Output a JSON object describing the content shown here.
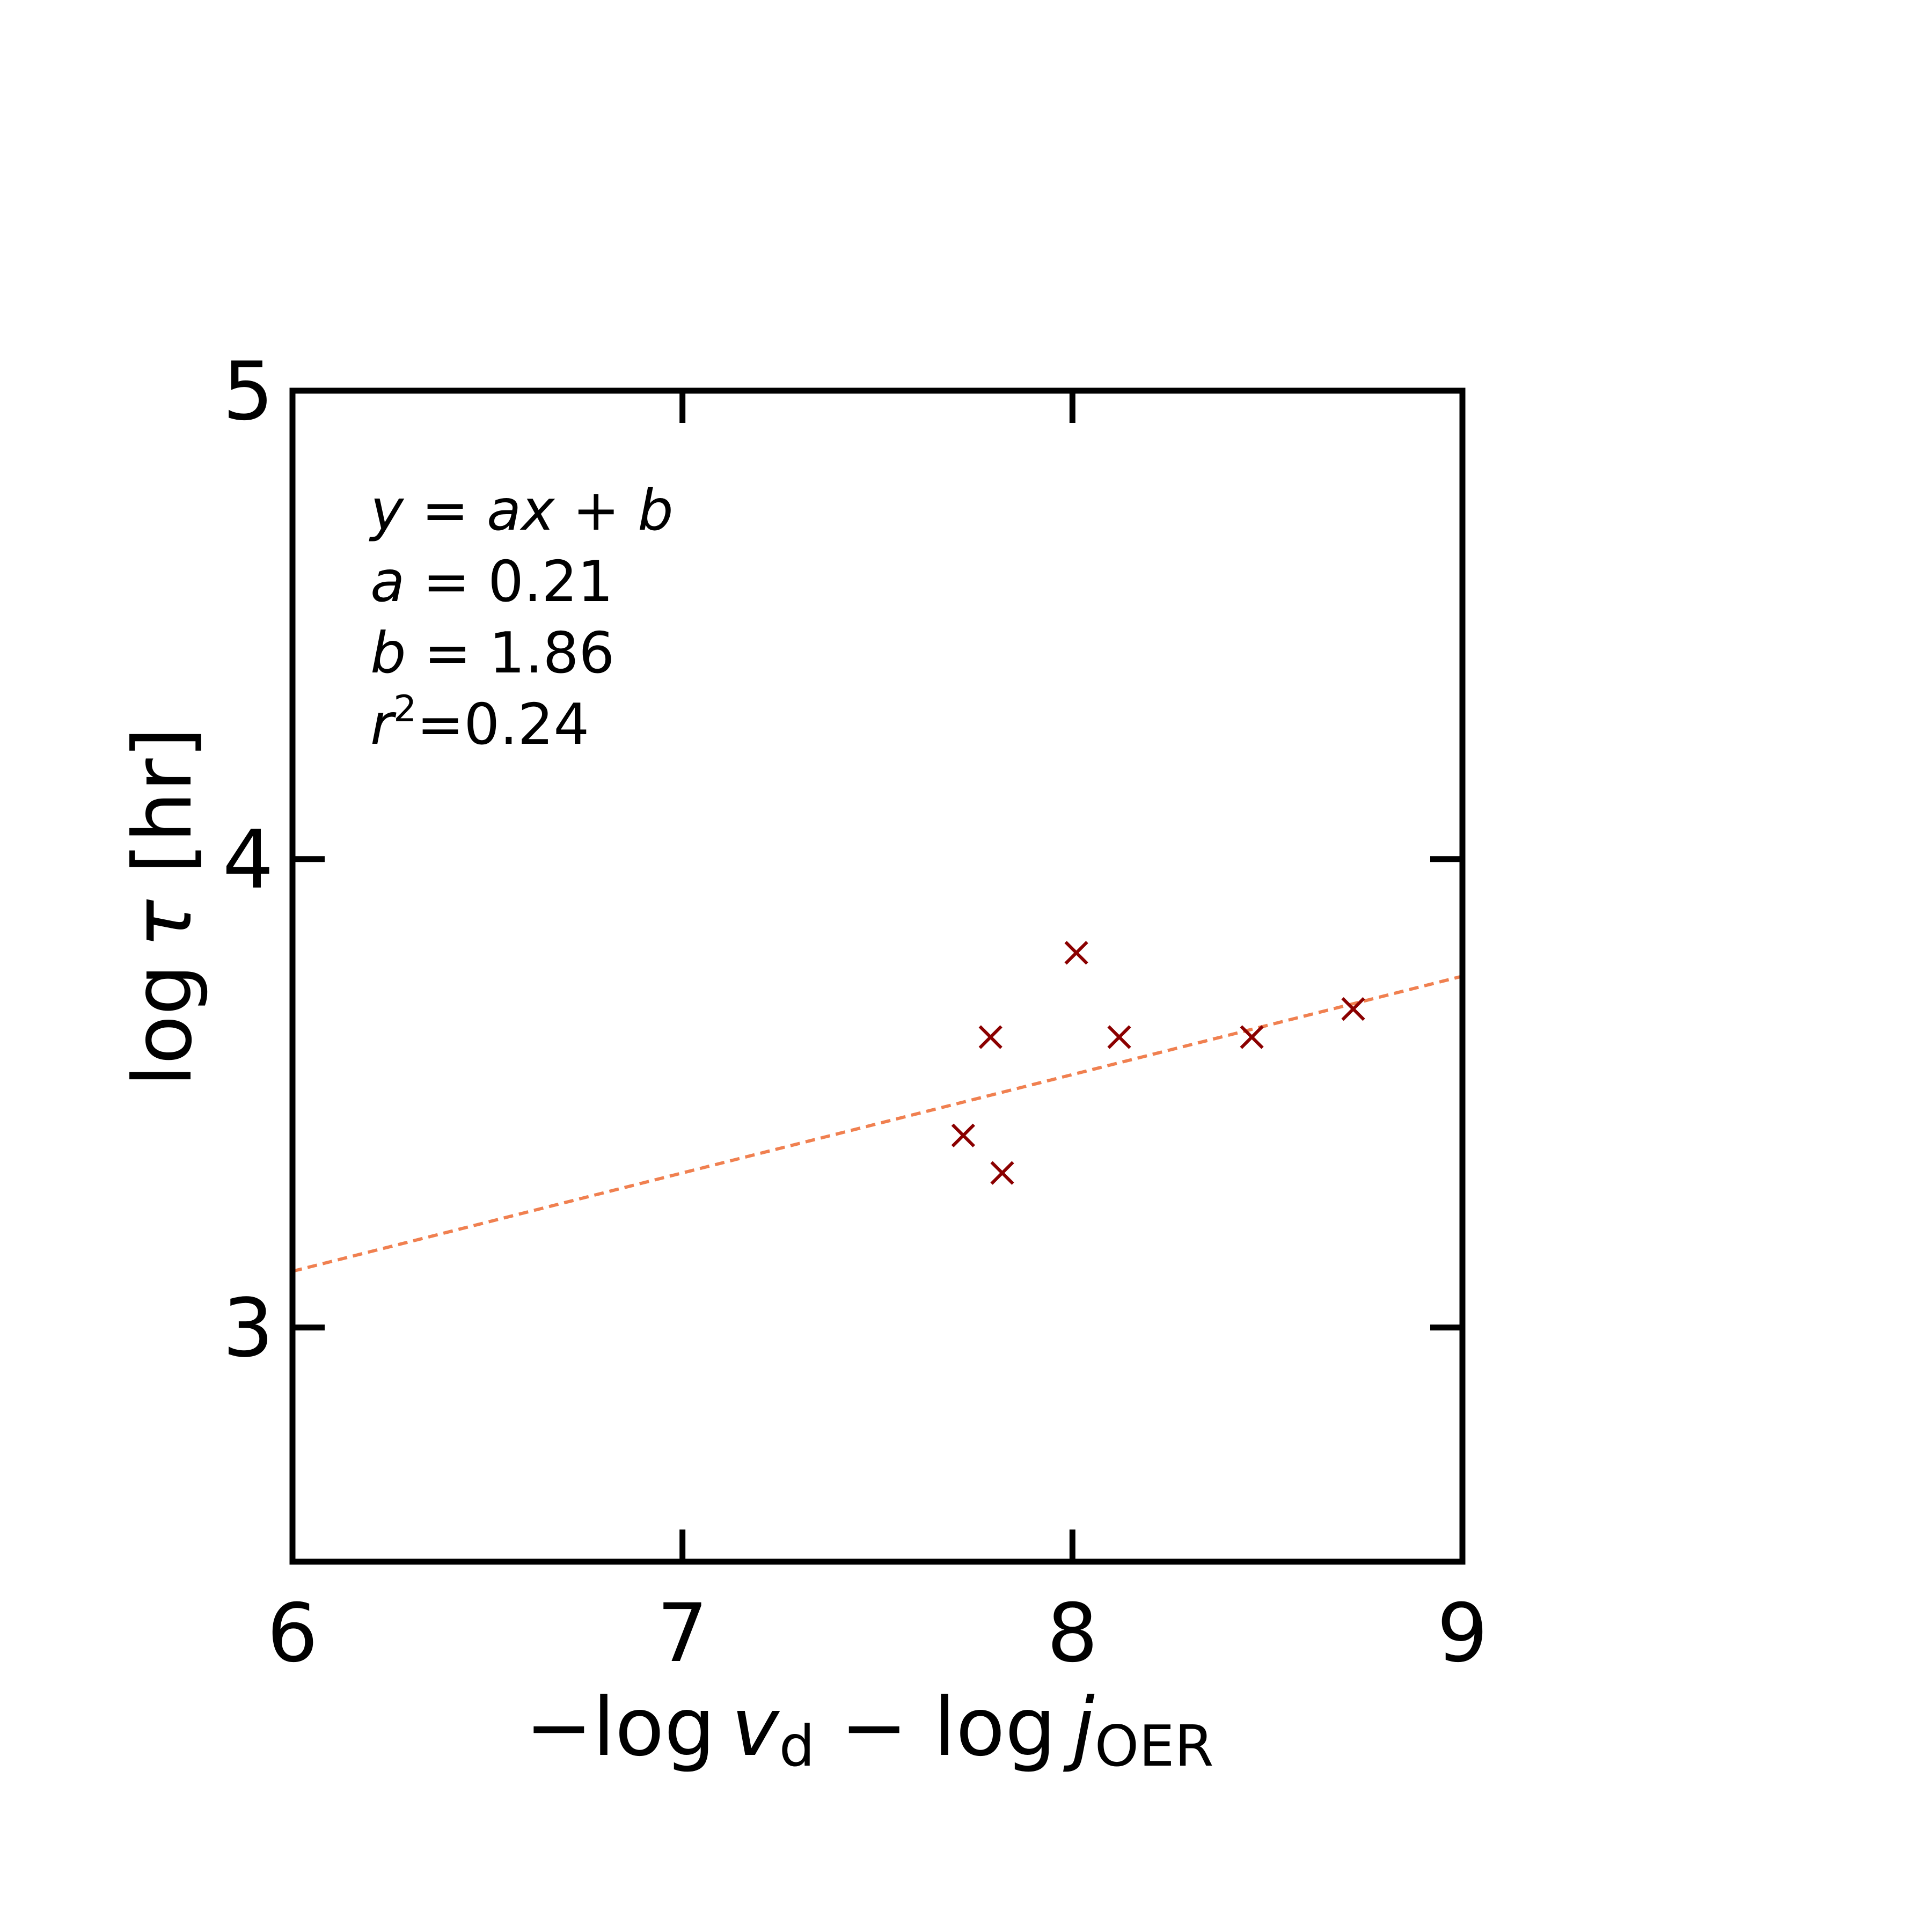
{
  "chart_data": {
    "type": "scatter",
    "xlabel": {
      "prefix": "−log ",
      "v": "v",
      "v_sub": "d",
      "middle": " − log ",
      "j": "j",
      "j_sub": "OER"
    },
    "ylabel": {
      "prefix": "log ",
      "tau": "τ",
      "unit": " [hr]"
    },
    "xlim": [
      6,
      9
    ],
    "ylim": [
      2.5,
      5
    ],
    "xticks": [
      6,
      7,
      8,
      9
    ],
    "xtick_labels": [
      "6",
      "7",
      "8",
      "9"
    ],
    "yticks": [
      3,
      4,
      5
    ],
    "ytick_labels": [
      "3",
      "4",
      "5"
    ],
    "grid": false,
    "points": [
      {
        "x": 7.72,
        "y": 3.41
      },
      {
        "x": 7.79,
        "y": 3.62
      },
      {
        "x": 7.82,
        "y": 3.33
      },
      {
        "x": 8.01,
        "y": 3.8
      },
      {
        "x": 8.12,
        "y": 3.62
      },
      {
        "x": 8.46,
        "y": 3.62
      },
      {
        "x": 8.72,
        "y": 3.68
      }
    ],
    "fit": {
      "slope": 0.21,
      "intercept": 1.86,
      "x_range": [
        6,
        9
      ]
    },
    "annotation": {
      "equation": {
        "y": "y",
        "eq": " = ",
        "a": "a",
        "x": "x",
        "plus": " + ",
        "b": "b"
      },
      "a_line": {
        "var": "a",
        "text": " = 0.21"
      },
      "b_line": {
        "var": "b",
        "text": " = 1.86"
      },
      "r2_line": {
        "var": "r",
        "sup": "2",
        "text": "=0.24"
      }
    },
    "colors": {
      "points": "#8b0000",
      "fit_line": "#f08050",
      "axes": "#000000"
    }
  }
}
